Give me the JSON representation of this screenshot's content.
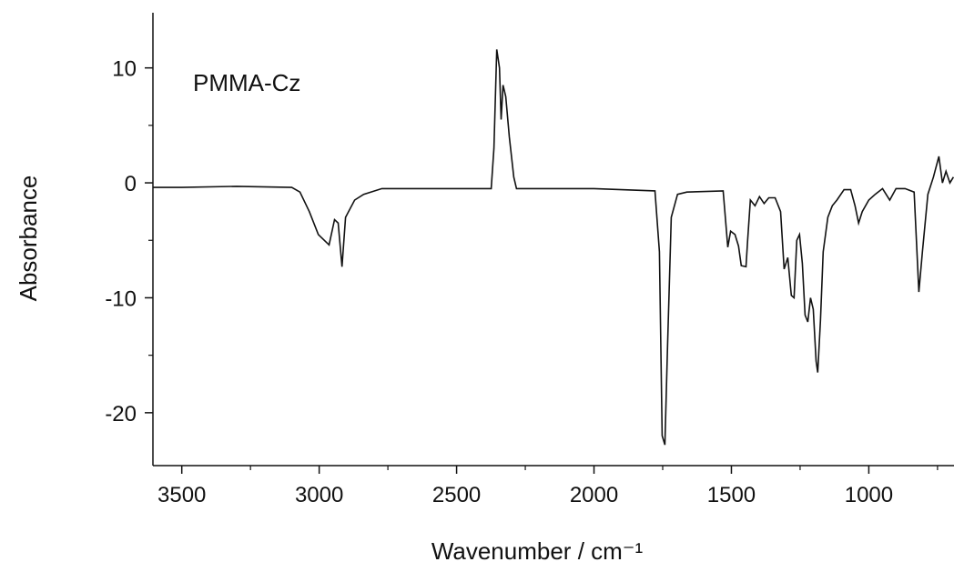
{
  "chart_data": {
    "type": "line",
    "annotation": "PMMA-Cz",
    "xlabel": "Wavenumber / cm⁻¹",
    "ylabel": "Absorbance",
    "xlim": [
      3605,
      690
    ],
    "ylim": [
      -24.6,
      14.8
    ],
    "xticks": [
      3500,
      3000,
      2500,
      2000,
      1500,
      1000
    ],
    "yticks": [
      10,
      0,
      -10,
      -20
    ],
    "xminor": [
      3250,
      2750,
      2250,
      1750,
      1250,
      750
    ],
    "yminor": [
      5,
      -5,
      -15
    ],
    "series": [
      {
        "color": "#111111",
        "x": [
          3605,
          3500,
          3300,
          3100,
          3070,
          3036,
          3003,
          2964,
          2944,
          2931,
          2917,
          2904,
          2871,
          2838,
          2772,
          2500,
          2374,
          2364,
          2354,
          2344,
          2338,
          2331,
          2321,
          2308,
          2292,
          2282,
          2000,
          1778,
          1762,
          1752,
          1742,
          1732,
          1719,
          1696,
          1662,
          1530,
          1513,
          1503,
          1487,
          1474,
          1464,
          1447,
          1441,
          1431,
          1414,
          1398,
          1381,
          1364,
          1341,
          1321,
          1308,
          1295,
          1282,
          1272,
          1262,
          1252,
          1242,
          1232,
          1222,
          1212,
          1202,
          1192,
          1186,
          1176,
          1166,
          1149,
          1133,
          1116,
          1090,
          1066,
          1050,
          1037,
          1024,
          1000,
          977,
          950,
          924,
          901,
          868,
          835,
          818,
          805,
          785,
          765,
          745,
          732,
          719,
          705,
          692
        ],
        "values": [
          -0.4,
          -0.4,
          -0.3,
          -0.4,
          -0.8,
          -2.5,
          -4.5,
          -5.4,
          -3.2,
          -3.5,
          -7.3,
          -3,
          -1.5,
          -1,
          -0.5,
          -0.5,
          -0.5,
          3,
          11.6,
          10,
          5.5,
          8.5,
          7.5,
          4,
          0.5,
          -0.5,
          -0.5,
          -0.7,
          -6,
          -22,
          -22.8,
          -14,
          -3,
          -1,
          -0.8,
          -0.7,
          -5.6,
          -4.2,
          -4.5,
          -5.5,
          -7.2,
          -7.3,
          -5,
          -1.5,
          -2,
          -1.2,
          -1.8,
          -1.3,
          -1.3,
          -2.5,
          -7.5,
          -6.5,
          -9.8,
          -10,
          -5,
          -4.5,
          -7,
          -11.5,
          -12.1,
          -10,
          -11,
          -15.5,
          -16.5,
          -12,
          -6,
          -3,
          -2,
          -1.5,
          -0.6,
          -0.6,
          -2,
          -3.5,
          -2.5,
          -1.5,
          -1,
          -0.5,
          -1.5,
          -0.5,
          -0.5,
          -0.8,
          -9.5,
          -6,
          -1,
          0.5,
          2.3,
          0,
          1,
          0,
          0.5
        ]
      }
    ]
  }
}
